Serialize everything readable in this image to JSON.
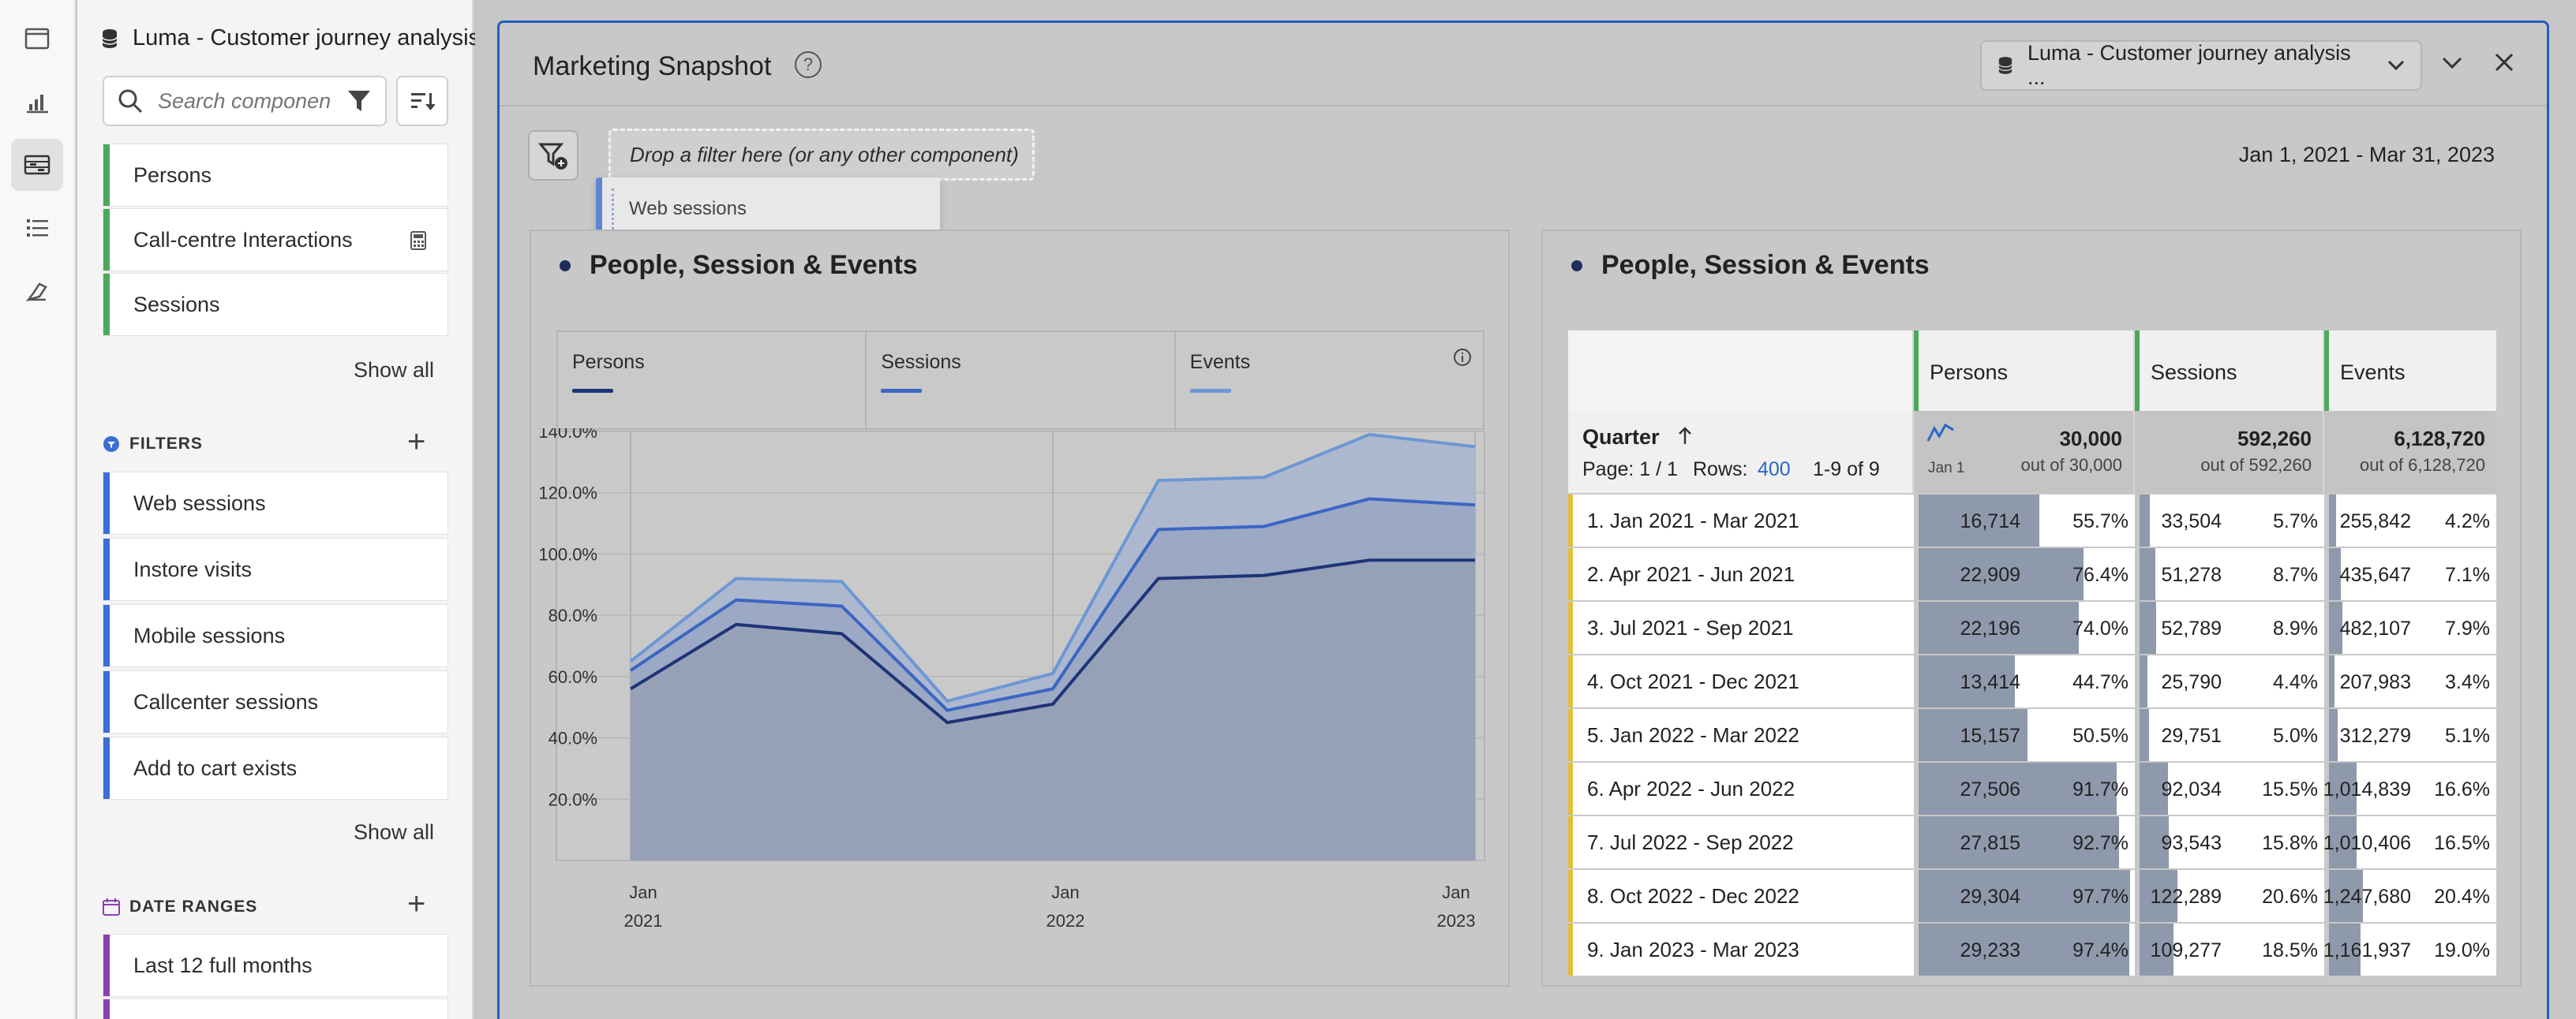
{
  "panel": {
    "dataview": "Luma - Customer journey analysis ...",
    "search_placeholder": "Search components",
    "metrics": [
      {
        "label": "Persons"
      },
      {
        "label": "Call-centre Interactions"
      },
      {
        "label": "Sessions"
      }
    ],
    "show_all": "Show all",
    "filters_heading": "FILTERS",
    "filters": [
      {
        "label": "Web sessions"
      },
      {
        "label": "Instore visits"
      },
      {
        "label": "Mobile sessions"
      },
      {
        "label": "Callcenter sessions"
      },
      {
        "label": "Add to cart exists"
      }
    ],
    "date_ranges_heading": "DATE RANGES",
    "date_ranges": [
      {
        "label": "Last 12 full months"
      }
    ]
  },
  "project": {
    "title": "Marketing Snapshot",
    "dataview_select": "Luma - Customer journey analysis ...",
    "drop_zone": "Drop a filter here (or any other component)",
    "dragging_chip": "Web sessions",
    "date_range": "Jan 1, 2021 - Mar 31, 2023"
  },
  "line_viz": {
    "title": "People, Session & Events",
    "legend": [
      {
        "name": "Persons",
        "color": "#1d3478"
      },
      {
        "name": "Sessions",
        "color": "#3b66c4"
      },
      {
        "name": "Events",
        "color": "#6d97d4"
      }
    ]
  },
  "chart_data": {
    "type": "area",
    "x": [
      "Jan 2021",
      "Apr 2021",
      "Jul 2021",
      "Oct 2021",
      "Jan 2022",
      "Apr 2022",
      "Jul 2022",
      "Oct 2022",
      "Jan 2023"
    ],
    "xtick_labels": [
      [
        "Jan",
        "2021"
      ],
      [
        "Jan",
        "2022"
      ],
      [
        "Jan",
        "2023"
      ]
    ],
    "ytick_labels": [
      "20.0%",
      "40.0%",
      "60.0%",
      "80.0%",
      "100.0%",
      "120.0%",
      "140.0%"
    ],
    "ylim": [
      0,
      140
    ],
    "series": [
      {
        "name": "Events",
        "values": [
          65,
          92,
          91,
          52,
          61,
          124,
          125,
          139,
          135
        ]
      },
      {
        "name": "Sessions",
        "values": [
          62,
          85,
          83,
          49,
          56,
          108,
          109,
          118,
          116
        ]
      },
      {
        "name": "Persons",
        "values": [
          56,
          77,
          74,
          45,
          51,
          92,
          93,
          98,
          98
        ]
      }
    ]
  },
  "table_viz": {
    "title": "People, Session & Events",
    "dimension": "Quarter",
    "page_info": "Page: 1 / 1",
    "rows_label": "Rows:",
    "rows_value": "400",
    "range_info": "1-9 of 9",
    "spark_label": "Jan 1",
    "columns": [
      {
        "name": "Persons",
        "total": "30,000",
        "out_of": "out of 30,000"
      },
      {
        "name": "Sessions",
        "total": "592,260",
        "out_of": "out of 592,260"
      },
      {
        "name": "Events",
        "total": "6,128,720",
        "out_of": "out of 6,128,720"
      }
    ],
    "rows": [
      {
        "label": "1.  Jan 2021 - Mar 2021",
        "persons": "16,714",
        "persons_pct": "55.7%",
        "persons_frac": 0.557,
        "sessions": "33,504",
        "sessions_pct": "5.7%",
        "sessions_frac": 0.057,
        "events": "255,842",
        "events_pct": "4.2%",
        "events_frac": 0.042
      },
      {
        "label": "2.  Apr 2021 - Jun 2021",
        "persons": "22,909",
        "persons_pct": "76.4%",
        "persons_frac": 0.764,
        "sessions": "51,278",
        "sessions_pct": "8.7%",
        "sessions_frac": 0.087,
        "events": "435,647",
        "events_pct": "7.1%",
        "events_frac": 0.071
      },
      {
        "label": "3.  Jul 2021 - Sep 2021",
        "persons": "22,196",
        "persons_pct": "74.0%",
        "persons_frac": 0.74,
        "sessions": "52,789",
        "sessions_pct": "8.9%",
        "sessions_frac": 0.089,
        "events": "482,107",
        "events_pct": "7.9%",
        "events_frac": 0.079
      },
      {
        "label": "4.  Oct 2021 - Dec 2021",
        "persons": "13,414",
        "persons_pct": "44.7%",
        "persons_frac": 0.447,
        "sessions": "25,790",
        "sessions_pct": "4.4%",
        "sessions_frac": 0.044,
        "events": "207,983",
        "events_pct": "3.4%",
        "events_frac": 0.034
      },
      {
        "label": "5.  Jan 2022 - Mar 2022",
        "persons": "15,157",
        "persons_pct": "50.5%",
        "persons_frac": 0.505,
        "sessions": "29,751",
        "sessions_pct": "5.0%",
        "sessions_frac": 0.05,
        "events": "312,279",
        "events_pct": "5.1%",
        "events_frac": 0.051
      },
      {
        "label": "6.  Apr 2022 - Jun 2022",
        "persons": "27,506",
        "persons_pct": "91.7%",
        "persons_frac": 0.917,
        "sessions": "92,034",
        "sessions_pct": "15.5%",
        "sessions_frac": 0.155,
        "events": "1,014,839",
        "events_pct": "16.6%",
        "events_frac": 0.166
      },
      {
        "label": "7.  Jul 2022 - Sep 2022",
        "persons": "27,815",
        "persons_pct": "92.7%",
        "persons_frac": 0.927,
        "sessions": "93,543",
        "sessions_pct": "15.8%",
        "sessions_frac": 0.158,
        "events": "1,010,406",
        "events_pct": "16.5%",
        "events_frac": 0.165
      },
      {
        "label": "8.  Oct 2022 - Dec 2022",
        "persons": "29,304",
        "persons_pct": "97.7%",
        "persons_frac": 0.977,
        "sessions": "122,289",
        "sessions_pct": "20.6%",
        "sessions_frac": 0.206,
        "events": "1,247,680",
        "events_pct": "20.4%",
        "events_frac": 0.204
      },
      {
        "label": "9.  Jan 2023 - Mar 2023",
        "persons": "29,233",
        "persons_pct": "97.4%",
        "persons_frac": 0.974,
        "sessions": "109,277",
        "sessions_pct": "18.5%",
        "sessions_frac": 0.185,
        "events": "1,161,937",
        "events_pct": "19.0%",
        "events_frac": 0.19
      }
    ]
  }
}
